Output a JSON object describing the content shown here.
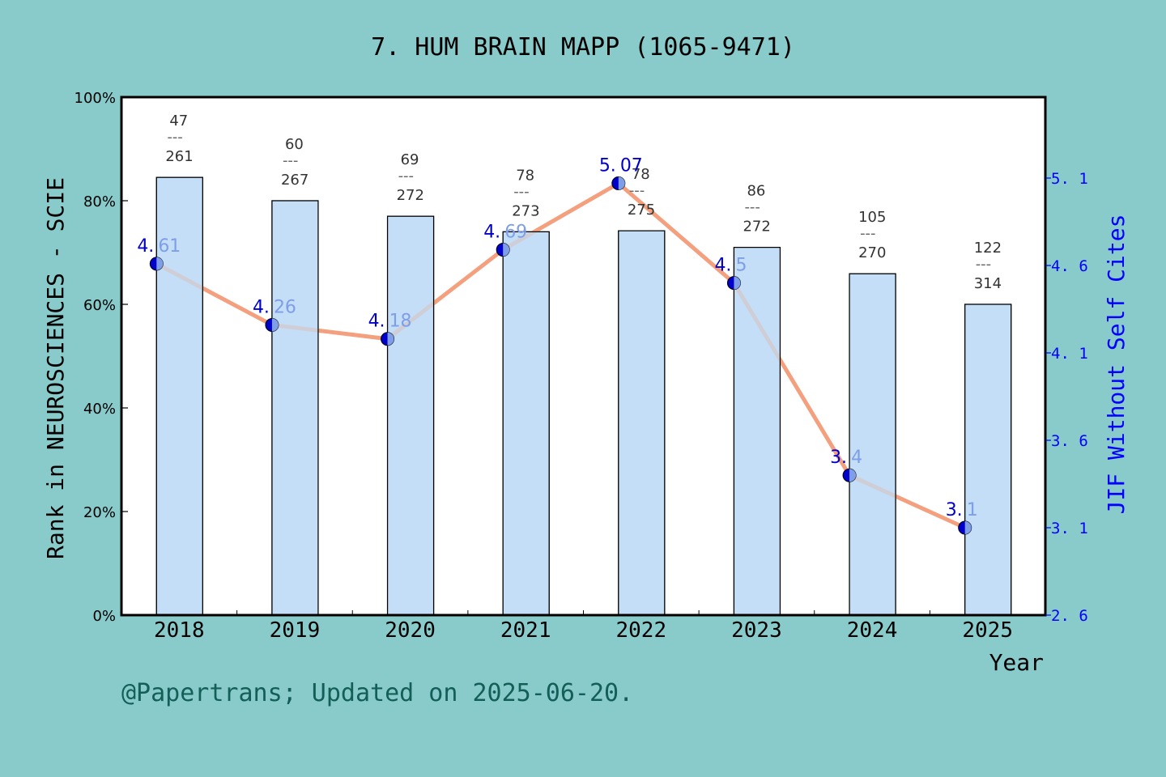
{
  "title": "7. HUM BRAIN MAPP (1065-9471)",
  "footer": "@Papertrans; Updated on 2025-06-20.",
  "colors": {
    "background": "#88cbca",
    "plot_bg": "#ffffff",
    "bar_fill": "#c3def5",
    "line": "#f4a07e",
    "marker": "#0000cc",
    "right_axis": "#0000ff",
    "rank_label": "#333333",
    "footer": "#145e58"
  },
  "chart_data": {
    "type": "bar+line",
    "title": "7. HUM BRAIN MAPP (1065-9471)",
    "xlabel": "Year",
    "ylabel_left": "Rank in NEUROSCIENCES - SCIE",
    "ylabel_right": "JIF Without Self Cites",
    "categories": [
      "2018",
      "2019",
      "2020",
      "2021",
      "2022",
      "2023",
      "2024",
      "2025"
    ],
    "left_axis": {
      "ylim": [
        0,
        100
      ],
      "ticks": [
        "0%",
        "20%",
        "40%",
        "60%",
        "80%",
        "100%"
      ],
      "tick_values": [
        0,
        20,
        40,
        60,
        80,
        100
      ]
    },
    "right_axis": {
      "ylim": [
        2.6,
        5.6
      ],
      "ticks": [
        "2.6",
        "3.1",
        "3.6",
        "4.1",
        "4.6",
        "5.1"
      ],
      "tick_values": [
        2.6,
        3.1,
        3.6,
        4.1,
        4.6,
        5.1
      ]
    },
    "series": [
      {
        "name": "Rank percentile",
        "type": "bar",
        "axis": "left",
        "values": [
          84.5,
          80,
          77,
          74,
          74.2,
          71,
          65.9,
          60
        ],
        "labels": [
          {
            "rank": "47",
            "total": "261"
          },
          {
            "rank": "60",
            "total": "267"
          },
          {
            "rank": "69",
            "total": "272"
          },
          {
            "rank": "78",
            "total": "273"
          },
          {
            "rank": "78",
            "total": "275"
          },
          {
            "rank": "86",
            "total": "272"
          },
          {
            "rank": "105",
            "total": "270"
          },
          {
            "rank": "122",
            "total": "314"
          }
        ]
      },
      {
        "name": "JIF Without Self Cites",
        "type": "line",
        "axis": "right",
        "values": [
          4.61,
          4.26,
          4.18,
          4.69,
          5.07,
          4.5,
          3.4,
          3.1
        ],
        "labels": [
          "4.61",
          "4.26",
          "4.18",
          "4.69",
          "5.07",
          "4.5",
          "3.4",
          "3.1"
        ]
      }
    ],
    "grid": false,
    "legend": "none"
  }
}
